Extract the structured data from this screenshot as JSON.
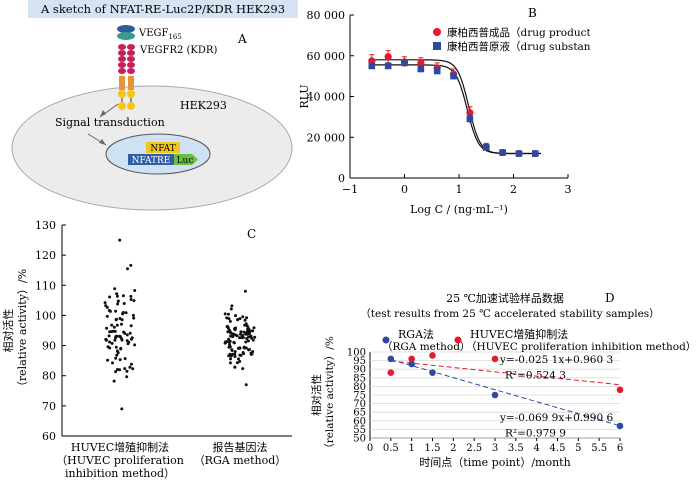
{
  "panel_a": {
    "title": "A sketch of NFAT-RE-Luc2P/KDR HEK293",
    "letter": "A",
    "vegf_label": "VEGF",
    "vegf_sub": "165",
    "receptor_label": "VEGFR2 (KDR)",
    "cell_label": "HEK293",
    "signal_label": "Signal transduction",
    "nfat_label": "NFAT",
    "nfatre_label": "NFATRE",
    "luc_label": "Luc"
  },
  "chart_data": [
    {
      "id": "B",
      "type": "line",
      "letter": "B",
      "xlabel": "Log C / (ng·mL⁻¹)",
      "ylabel": "RLU",
      "xlim": [
        -1,
        3
      ],
      "ylim": [
        0,
        80000
      ],
      "xticks": [
        -1,
        0,
        1,
        2,
        3
      ],
      "yticks": [
        0,
        20000,
        40000,
        60000,
        80000
      ],
      "ytick_labels": [
        "0",
        "20 000",
        "40 000",
        "60 000",
        "80 000"
      ],
      "legend_position": "top-right",
      "series": [
        {
          "name": "康柏西普成品（drug product）",
          "marker": "circle",
          "color": "#e8192c",
          "x": [
            -0.6,
            -0.3,
            0.0,
            0.3,
            0.6,
            0.9,
            1.2,
            1.5,
            1.8,
            2.1,
            2.4
          ],
          "y": [
            57500,
            59500,
            57000,
            56500,
            54000,
            51000,
            32000,
            15500,
            12500,
            12000,
            12000
          ],
          "errors": [
            3000,
            3000,
            2500,
            2500,
            2500,
            2500,
            3000,
            1500,
            1000,
            800,
            800
          ]
        },
        {
          "name": "康柏西普原液（drug substance）",
          "marker": "square",
          "color": "#2e4a9e",
          "x": [
            -0.6,
            -0.3,
            0.0,
            0.3,
            0.6,
            0.9,
            1.2,
            1.5,
            1.8,
            2.1,
            2.4
          ],
          "y": [
            55000,
            55000,
            56500,
            53500,
            52500,
            50000,
            29000,
            15000,
            12500,
            12000,
            12000
          ],
          "errors": [
            1500,
            1500,
            1500,
            1500,
            1500,
            1500,
            2000,
            1000,
            800,
            800,
            800
          ]
        }
      ]
    },
    {
      "id": "C",
      "type": "scatter",
      "letter": "C",
      "ylabel": "相对活性",
      "ylabel2": "（relative activity）/%",
      "ylim": [
        60,
        130
      ],
      "yticks": [
        60,
        70,
        80,
        90,
        100,
        110,
        120,
        130
      ],
      "groups": [
        {
          "name_line1": "HUVEC增殖抑制法",
          "name_line2": "（HUVEC proliferation",
          "name_line3": "inhibition method）",
          "summary": {
            "n": 90,
            "min": 69,
            "max": 125,
            "median": 96
          }
        },
        {
          "name_line1": "报告基因法",
          "name_line2": "（RGA method）",
          "name_line3": "",
          "summary": {
            "n": 110,
            "min": 77,
            "max": 108,
            "median": 93
          }
        }
      ]
    },
    {
      "id": "D",
      "type": "scatter",
      "letter": "D",
      "title": "25 ℃加速试验样品数据",
      "subtitle": "（test results from 25 ℃ accelerated stability samples）",
      "xlabel": "时间点（time point）/month",
      "ylabel": "相对活性",
      "ylabel2": "（relative activity）/%",
      "xlim": [
        0,
        6
      ],
      "ylim": [
        50,
        100
      ],
      "xticks": [
        0,
        0.5,
        1,
        1.5,
        2,
        2.5,
        3,
        3.5,
        4,
        4.5,
        5,
        5.5,
        6
      ],
      "xtick_labels": [
        "0",
        "0.5",
        "1",
        "1.5",
        "2",
        "2.5",
        "3",
        "3.5",
        "4",
        "4.5",
        "5",
        "5.5",
        "6"
      ],
      "yticks": [
        50,
        55,
        60,
        65,
        70,
        75,
        80,
        85,
        90,
        95,
        100
      ],
      "series": [
        {
          "name": "RGA法",
          "name2": "（RGA method）",
          "color": "#2e4a9e",
          "x": [
            0.5,
            1,
            1.5,
            3,
            6
          ],
          "y": [
            96,
            93,
            88,
            75,
            57
          ],
          "fit": {
            "slope": -0.0699,
            "intercept": 0.9906,
            "equation": "y=-0.069 9x+0.990 6",
            "r2_label": "R²=0.979 9"
          }
        },
        {
          "name": "HUVEC增殖抑制法",
          "name2": "（HUVEC proliferation inhibition method）",
          "color": "#e8192c",
          "x": [
            0.5,
            1,
            1.5,
            3,
            6
          ],
          "y": [
            88,
            96,
            98,
            96,
            78
          ],
          "fit": {
            "slope": -0.0251,
            "intercept": 0.9603,
            "equation": "y=-0.025 1x+0.960 3",
            "r2_label": "R²=0.524 3"
          }
        }
      ]
    }
  ]
}
